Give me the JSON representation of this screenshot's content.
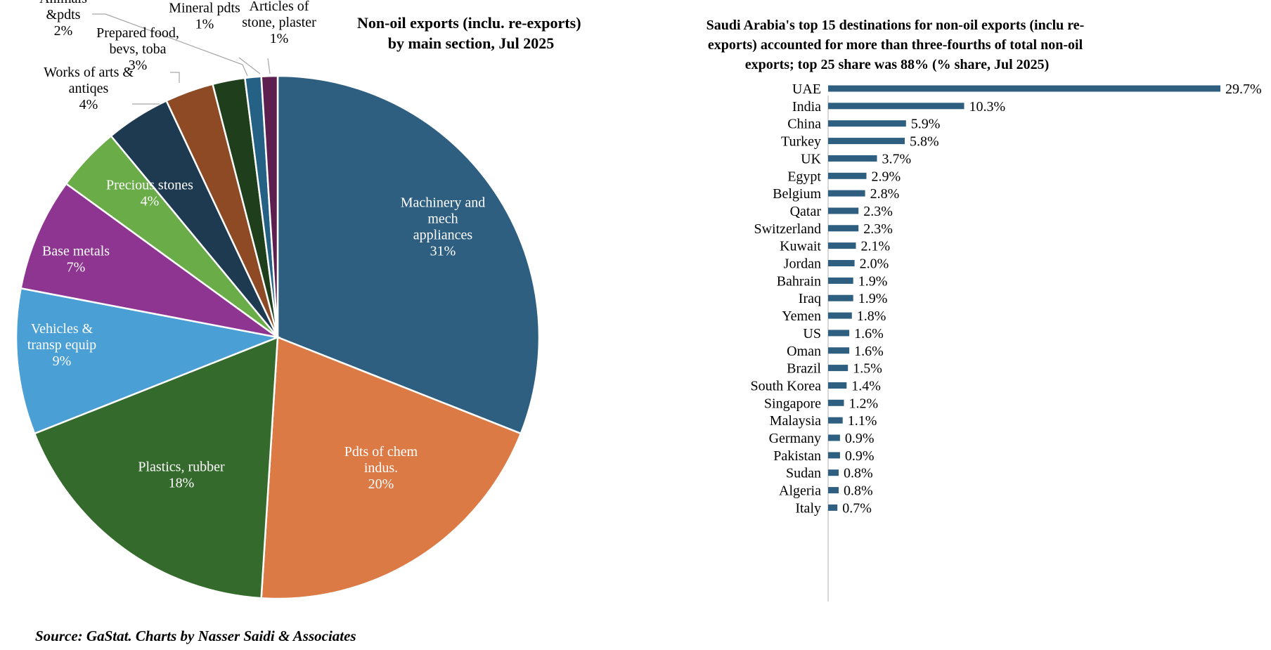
{
  "chart_data": [
    {
      "type": "pie",
      "title": "Non-oil exports (inclu. re-exports) by main section, Jul 2025",
      "title_lines": [
        "Non-oil exports (inclu. re-exports)",
        "by main section, Jul 2025"
      ],
      "slices": [
        {
          "label": "Machinery and mech appliances",
          "label_lines": [
            "Machinery and",
            "mech",
            "appliances"
          ],
          "value": 31,
          "value_label": "31%",
          "color": "#2e5f80",
          "label_inside": true
        },
        {
          "label": "Pdts of chem indus.",
          "label_lines": [
            "Pdts of chem",
            "indus."
          ],
          "value": 20,
          "value_label": "20%",
          "color": "#dc7a45",
          "label_inside": true
        },
        {
          "label": "Plastics, rubber",
          "label_lines": [
            "Plastics, rubber"
          ],
          "value": 18,
          "value_label": "18%",
          "color": "#356a2d",
          "label_inside": true
        },
        {
          "label": "Vehicles & transp equip",
          "label_lines": [
            "Vehicles &",
            "transp equip"
          ],
          "value": 9,
          "value_label": "9%",
          "color": "#4a9fd5",
          "label_inside": true
        },
        {
          "label": "Base metals",
          "label_lines": [
            "Base metals"
          ],
          "value": 7,
          "value_label": "7%",
          "color": "#8e3591",
          "label_inside": true
        },
        {
          "label": "Precious stones",
          "label_lines": [
            "Precious stones"
          ],
          "value": 4,
          "value_label": "4%",
          "color": "#69ac48",
          "label_inside": true
        },
        {
          "label": "Works of arts & antiqes",
          "label_lines": [
            "Works of arts &",
            "antiqes"
          ],
          "value": 4,
          "value_label": "4%",
          "color": "#1d3a50",
          "label_inside": false
        },
        {
          "label": "Prepared food, bevs, toba",
          "label_lines": [
            "Prepared food,",
            "bevs, toba"
          ],
          "value": 3,
          "value_label": "3%",
          "color": "#8e4a24",
          "label_inside": false
        },
        {
          "label": "Animals &pdts",
          "label_lines": [
            "Animals",
            "&pdts"
          ],
          "value": 2,
          "value_label": "2%",
          "color": "#1f3f1c",
          "label_inside": false
        },
        {
          "label": "Mineral pdts",
          "label_lines": [
            "Mineral pdts"
          ],
          "value": 1,
          "value_label": "1%",
          "color": "#256185",
          "label_inside": false
        },
        {
          "label": "Articles of stone, plaster",
          "label_lines": [
            "Articles of",
            "stone, plaster"
          ],
          "value": 1,
          "value_label": "1%",
          "color": "#5c1f4e",
          "label_inside": false
        }
      ]
    },
    {
      "type": "bar",
      "orientation": "horizontal",
      "title": "Saudi Arabia's top 15 destinations for non-oil exports (inclu re-exports) accounted for more than three-fourths of total non-oil exports; top 25 share was 88% (% share, Jul 2025)",
      "title_lines": [
        "Saudi Arabia's top 15 destinations for non-oil exports (inclu re-",
        "exports) accounted for more than three-fourths of total non-oil",
        "exports; top 25 share was 88% (% share, Jul 2025)"
      ],
      "bar_color": "#2e5f80",
      "unit": "%",
      "categories": [
        "UAE",
        "India",
        "China",
        "Turkey",
        "UK",
        "Egypt",
        "Belgium",
        "Qatar",
        "Switzerland",
        "Kuwait",
        "Jordan",
        "Bahrain",
        "Iraq",
        "Yemen",
        "US",
        "Oman",
        "Brazil",
        "South Korea",
        "Singapore",
        "Malaysia",
        "Germany",
        "Pakistan",
        "Sudan",
        "Algeria",
        "Italy"
      ],
      "values": [
        29.7,
        10.3,
        5.9,
        5.8,
        3.7,
        2.9,
        2.8,
        2.3,
        2.3,
        2.1,
        2.0,
        1.9,
        1.9,
        1.8,
        1.6,
        1.6,
        1.5,
        1.4,
        1.2,
        1.1,
        0.9,
        0.9,
        0.8,
        0.8,
        0.7
      ],
      "value_labels": [
        "29.7%",
        "10.3%",
        "5.9%",
        "5.8%",
        "3.7%",
        "2.9%",
        "2.8%",
        "2.3%",
        "2.3%",
        "2.1%",
        "2.0%",
        "1.9%",
        "1.9%",
        "1.8%",
        "1.6%",
        "1.6%",
        "1.5%",
        "1.4%",
        "1.2%",
        "1.1%",
        "0.9%",
        "0.9%",
        "0.8%",
        "0.8%",
        "0.7%"
      ],
      "xlim": [
        0,
        29.7
      ]
    }
  ],
  "footer": {
    "source": "Source: GaStat. Charts by Nasser Saidi & Associates"
  }
}
